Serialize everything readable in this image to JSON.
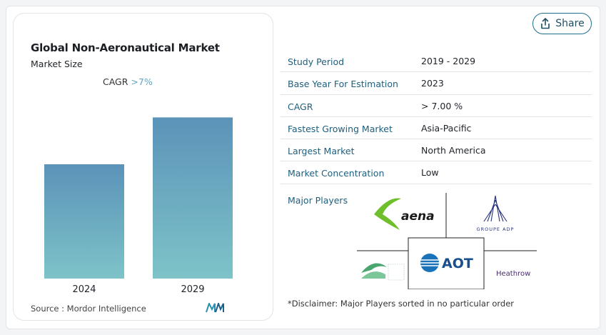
{
  "chart_card": {
    "title": "Global Non-Aeronautical Market",
    "subtitle": "Market Size",
    "cagr_label": "CAGR",
    "cagr_value": ">7%",
    "source": "Source :  Mordor Intelligence"
  },
  "chart_data": {
    "type": "bar",
    "categories": [
      "2024",
      "2029"
    ],
    "values": [
      1.0,
      1.41
    ],
    "title": "Global Non-Aeronautical Market",
    "xlabel": "",
    "ylabel": "",
    "ylim": [
      0,
      1.5
    ],
    "grid": false,
    "bar_gradient": [
      "#5b93b9",
      "#7ec3c8"
    ]
  },
  "share": {
    "label": "Share",
    "icon": "share-icon"
  },
  "table": {
    "rows": [
      {
        "key": "Study Period",
        "value": "2019 - 2029"
      },
      {
        "key": "Base Year For Estimation",
        "value": "2023"
      },
      {
        "key": "CAGR",
        "value": "> 7.00 %"
      },
      {
        "key": "Fastest Growing Market",
        "value": "Asia-Pacific"
      },
      {
        "key": "Largest Market",
        "value": "North America"
      },
      {
        "key": "Market Concentration",
        "value": "Low"
      }
    ]
  },
  "major_players": {
    "label": "Major Players",
    "logos": [
      "aena",
      "GROUPE ADP",
      "AOT",
      "Heathrow",
      "Hong Kong Airport Authority"
    ],
    "logo_aena": "aena",
    "logo_adp": "GROUPE ADP",
    "logo_aot": "AOT",
    "logo_heathrow": "Heathrow"
  },
  "disclaimer": "*Disclaimer: Major Players sorted in no particular order",
  "colors": {
    "accent": "#1d5f7e",
    "share_border": "#1f6f8b",
    "cagr_value": "#5aa5c8"
  }
}
